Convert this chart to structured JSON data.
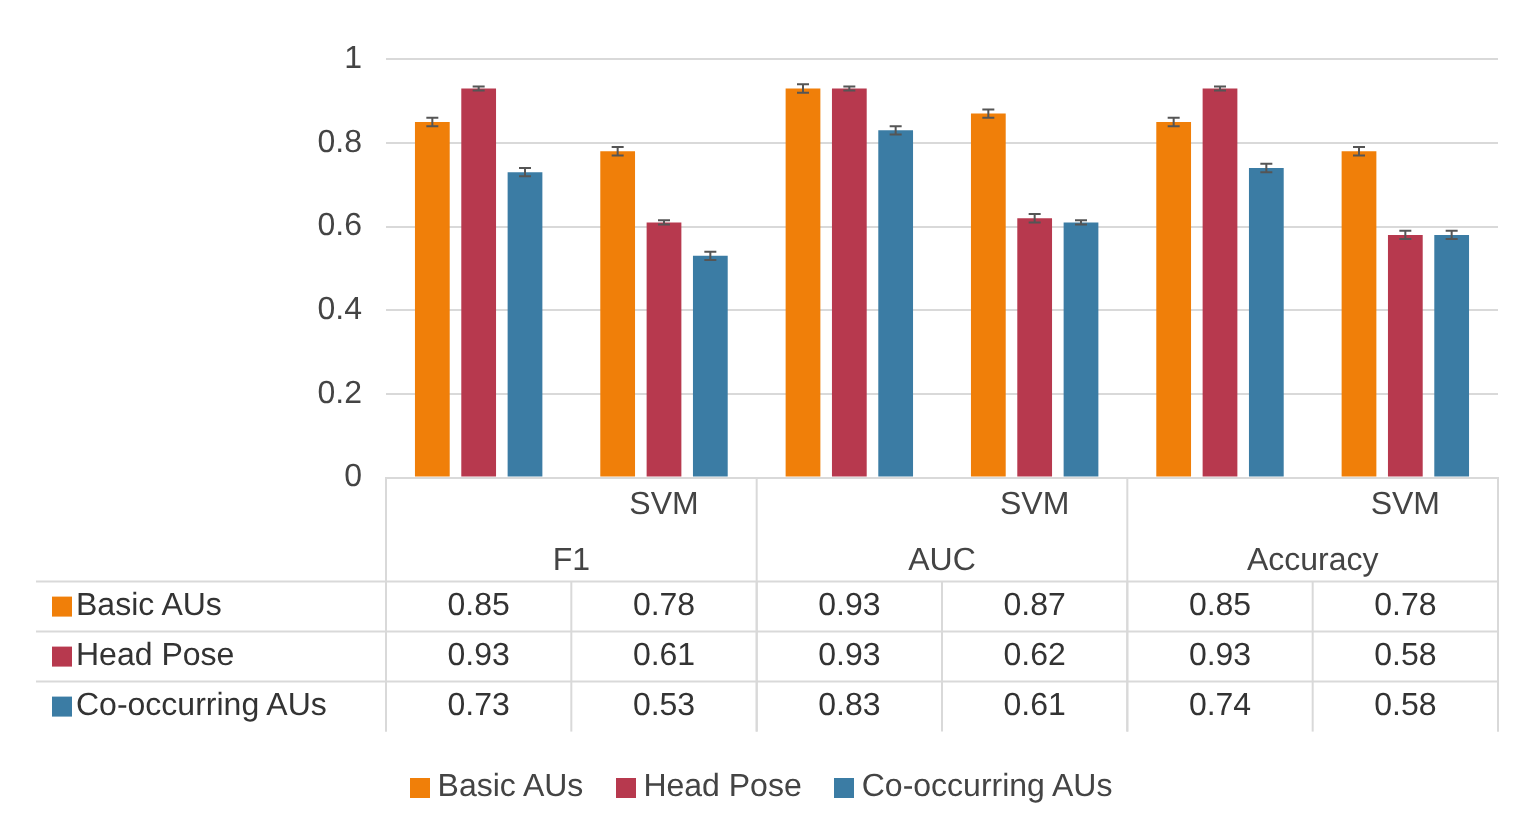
{
  "chart_data": {
    "type": "bar",
    "categories": [
      null,
      "SVM",
      null,
      "SVM",
      null,
      "SVM"
    ],
    "annotations": [
      "F1",
      "AUC",
      "Accuracy"
    ],
    "series": [
      {
        "name": "Basic AUs",
        "color": "#f07f09",
        "values": [
          0.85,
          0.78,
          0.93,
          0.87,
          0.85,
          0.78
        ],
        "errors": [
          0.01,
          0.01,
          0.01,
          0.01,
          0.01,
          0.01
        ]
      },
      {
        "name": "Head Pose",
        "color": "#b7394e",
        "values": [
          0.93,
          0.61,
          0.93,
          0.62,
          0.93,
          0.58
        ],
        "errors": [
          0.005,
          0.005,
          0.005,
          0.01,
          0.005,
          0.01
        ]
      },
      {
        "name": "Co-occurring AUs",
        "color": "#3b7ca4",
        "values": [
          0.73,
          0.53,
          0.83,
          0.61,
          0.74,
          0.58
        ],
        "errors": [
          0.01,
          0.01,
          0.01,
          0.005,
          0.01,
          0.01
        ]
      }
    ],
    "ylim": [
      0,
      1
    ],
    "yticks": [
      0,
      0.2,
      0.4,
      0.6,
      0.8,
      1
    ],
    "grid": "y",
    "data_labels": true,
    "legend": "bottom"
  }
}
